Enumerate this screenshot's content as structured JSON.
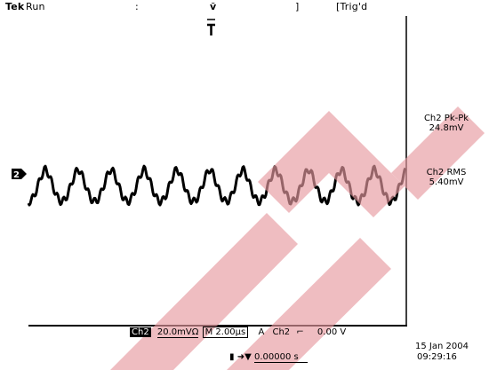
{
  "header": {
    "brand": "Tek",
    "run_state": "Run",
    "trigger_state": "Trig'd"
  },
  "measurements": [
    {
      "label": "Ch2 Pk-Pk",
      "value": "24.8mV"
    },
    {
      "label": "Ch2 RMS",
      "value": "5.40mV"
    }
  ],
  "channel_marker": "2",
  "status": {
    "channel": "Ch2",
    "volts_per_div": "20.0mV",
    "coupling": "Ω",
    "timebase_prefix": "M",
    "time_per_div": "2.00µs",
    "trigger_prefix": "A",
    "trigger_source": "Ch2",
    "trigger_slope": "⌐",
    "trigger_level": "0.00 V",
    "horizontal_icon": "▮",
    "horizontal_position": "0.00000 s",
    "date": "15 Jan  2004",
    "time": "09:29:16"
  },
  "watermark": {
    "color": "#e79aa0"
  },
  "trace": {
    "color": "#000000"
  }
}
